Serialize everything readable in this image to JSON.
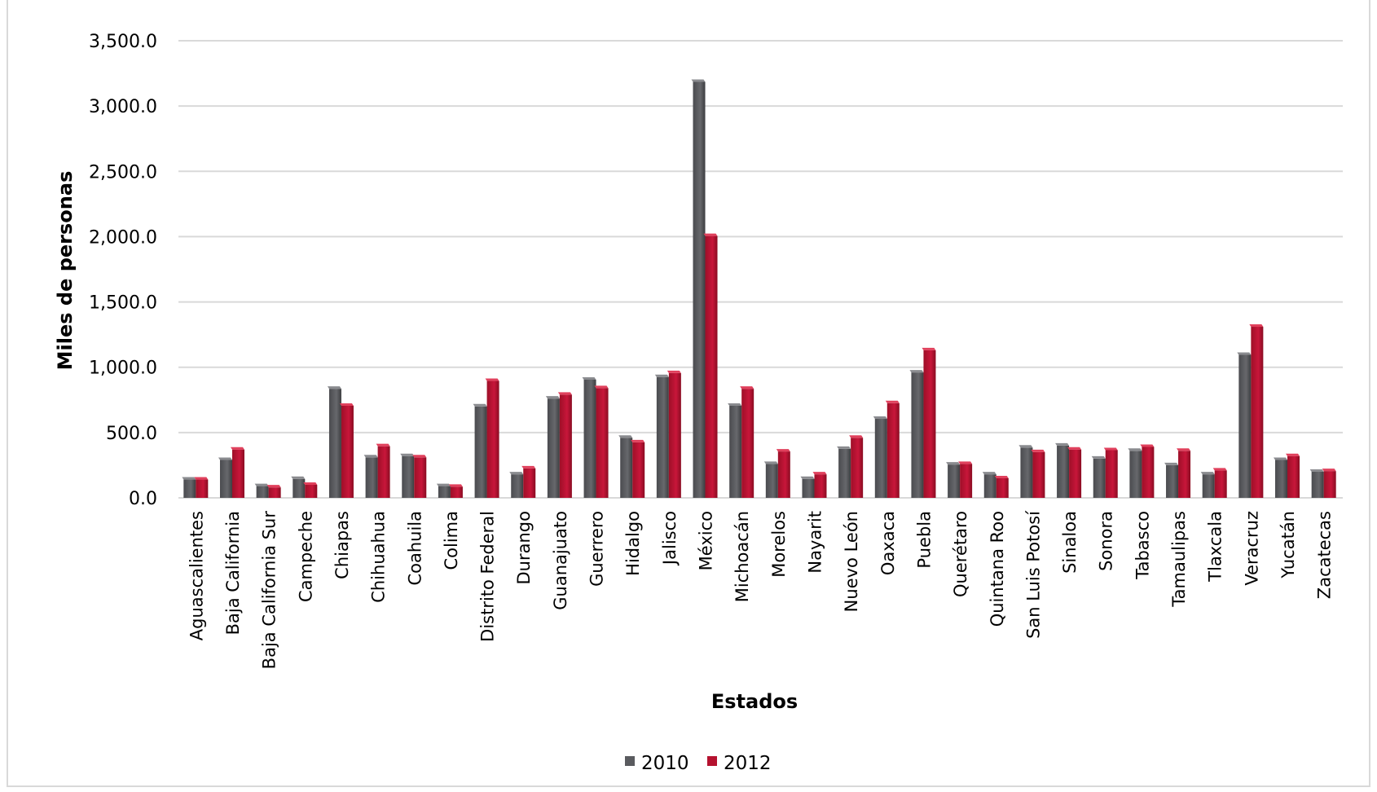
{
  "chart_data": {
    "type": "bar",
    "title": "",
    "xlabel": "Estados",
    "ylabel": "Miles de personas",
    "ylim": [
      0,
      3500
    ],
    "yticks": [
      "0.0",
      "500.0",
      "1,000.0",
      "1,500.0",
      "2,000.0",
      "2,500.0",
      "3,000.0",
      "3,500.0"
    ],
    "grid": true,
    "legend_position": "bottom",
    "categories": [
      "Aguascalientes",
      "Baja California",
      "Baja California Sur",
      "Campeche",
      "Chiapas",
      "Chihuahua",
      "Coahuila",
      "Colima",
      "Distrito Federal",
      "Durango",
      "Guanajuato",
      "Guerrero",
      "Hidalgo",
      "Jalisco",
      "México",
      "Michoacán",
      "Morelos",
      "Nayarit",
      "Nuevo León",
      "Oaxaca",
      "Puebla",
      "Querétaro",
      "Quintana Roo",
      "San Luis Potosí",
      "Sinaloa",
      "Sonora",
      "Tabasco",
      "Tamaulipas",
      "Tlaxcala",
      "Veracruz",
      "Yucatán",
      "Zacatecas"
    ],
    "series": [
      {
        "name": "2010",
        "color": "#5a5b5f",
        "values": [
          140,
          290,
          90,
          145,
          835,
          310,
          320,
          90,
          700,
          180,
          760,
          905,
          460,
          925,
          3185,
          705,
          260,
          145,
          375,
          605,
          960,
          255,
          180,
          385,
          400,
          300,
          360,
          250,
          180,
          1095,
          290,
          200
        ]
      },
      {
        "name": "2012",
        "color": "#b5122f",
        "values": [
          140,
          370,
          80,
          100,
          705,
          395,
          310,
          85,
          895,
          225,
          790,
          840,
          425,
          955,
          2005,
          835,
          355,
          180,
          460,
          725,
          1130,
          260,
          150,
          350,
          370,
          365,
          390,
          360,
          210,
          1310,
          320,
          205
        ]
      }
    ]
  }
}
